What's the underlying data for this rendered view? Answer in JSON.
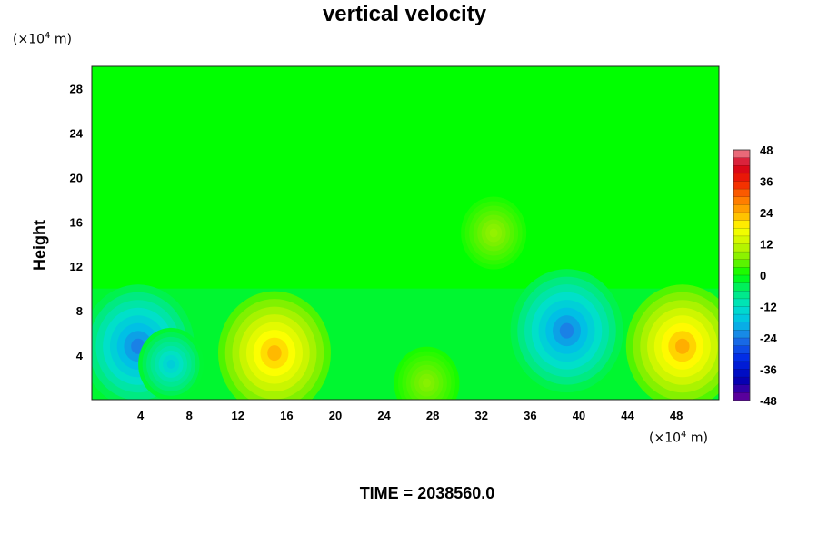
{
  "chart_data": {
    "type": "heatmap",
    "title": "vertical velocity",
    "ylabel": "Height",
    "x_unit": "(×10⁴ m)",
    "y_unit": "(×10⁴ m)",
    "xlim": [
      0,
      51.5
    ],
    "ylim": [
      0,
      30
    ],
    "x_ticks": [
      4,
      8,
      12,
      16,
      20,
      24,
      28,
      32,
      36,
      40,
      44,
      48
    ],
    "y_ticks": [
      4,
      8,
      12,
      16,
      20,
      24,
      28
    ],
    "colorbar": {
      "range": [
        -48,
        48
      ],
      "step": 3,
      "ticks": [
        48,
        36,
        24,
        12,
        0,
        -12,
        -24,
        -36,
        -48
      ]
    },
    "features": [
      {
        "x": 3.8,
        "y": 4.8,
        "value": -26
      },
      {
        "x": 6.5,
        "y": 3.2,
        "value": -17
      },
      {
        "x": 15,
        "y": 4.2,
        "value": 26
      },
      {
        "x": 39,
        "y": 6.2,
        "value": -26
      },
      {
        "x": 48.5,
        "y": 4.8,
        "value": 27
      },
      {
        "x": 33,
        "y": 15,
        "value": 9
      },
      {
        "x": 27.5,
        "y": 1.5,
        "value": 8
      }
    ]
  },
  "time_label": "TIME = 2038560.0"
}
